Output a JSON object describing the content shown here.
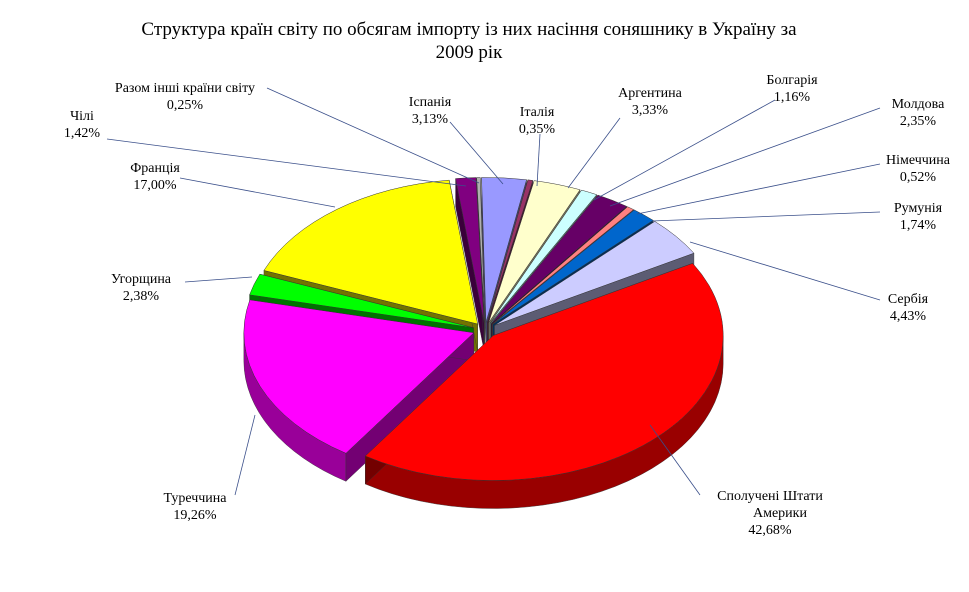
{
  "chart_data": {
    "type": "pie",
    "title_lines": [
      "Структура країн світу по обсягам імпорту із них насіння  соняшнику в Україну за",
      "2009 рік"
    ],
    "style": "3d-exploded",
    "legend": "none",
    "slices": [
      {
        "label": "Разом інші країни світу",
        "label_text": "0,25%",
        "value": 0.25,
        "color": "#b0b0b0"
      },
      {
        "label": "Іспанія",
        "label_text": "3,13%",
        "value": 3.13,
        "color": "#9999ff"
      },
      {
        "label": "Італія",
        "label_text": "0,35%",
        "value": 0.35,
        "color": "#993366"
      },
      {
        "label": "Аргентина",
        "label_text": "3,33%",
        "value": 3.33,
        "color": "#ffffcc"
      },
      {
        "label": "Болгарія",
        "label_text": "1,16%",
        "value": 1.16,
        "color": "#ccffff"
      },
      {
        "label": "Молдова",
        "label_text": "2,35%",
        "value": 2.35,
        "color": "#660066"
      },
      {
        "label": "Німеччина",
        "label_text": "0,52%",
        "value": 0.52,
        "color": "#ff8080"
      },
      {
        "label": "Румунія",
        "label_text": "1,74%",
        "value": 1.74,
        "color": "#0066cc"
      },
      {
        "label": "Сербія",
        "label_text": "4,43%",
        "value": 4.43,
        "color": "#ccccff"
      },
      {
        "label": "Сполучені Штати Америки",
        "label_text": "42,68%",
        "value": 42.68,
        "color": "#ff0000"
      },
      {
        "label": "Туреччина",
        "label_text": "19,26%",
        "value": 19.26,
        "color": "#ff00ff"
      },
      {
        "label": "Угорщина",
        "label_text": "2,38%",
        "value": 2.38,
        "color": "#00ff00"
      },
      {
        "label": "Франція",
        "label_text": "17,00%",
        "value": 17.0,
        "color": "#ffff00"
      },
      {
        "label": "Чілі",
        "label_text": "1,42%",
        "value": 1.42,
        "color": "#800080"
      }
    ]
  }
}
